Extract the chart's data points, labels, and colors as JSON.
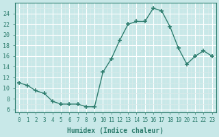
{
  "x": [
    0,
    1,
    2,
    3,
    4,
    5,
    6,
    7,
    8,
    9,
    10,
    11,
    12,
    13,
    14,
    15,
    16,
    17,
    18,
    19,
    20,
    21,
    22,
    23
  ],
  "y": [
    11,
    10.5,
    9.5,
    9,
    7.5,
    7,
    7,
    7,
    6.5,
    6.5,
    13,
    15.5,
    19,
    22,
    22.5,
    22.5,
    25,
    24.5,
    21.5,
    17.5,
    14.5,
    16,
    17,
    16
  ],
  "line_color": "#2e7d6e",
  "marker": "+",
  "bg_color": "#c8e8e8",
  "grid_color_major": "#ffffff",
  "grid_color_minor": "#daeaea",
  "xlabel": "Humidex (Indice chaleur)",
  "ylim": [
    5.5,
    26
  ],
  "xlim": [
    -0.5,
    23.5
  ],
  "yticks": [
    6,
    8,
    10,
    12,
    14,
    16,
    18,
    20,
    22,
    24
  ],
  "xticks": [
    0,
    1,
    2,
    3,
    4,
    5,
    6,
    7,
    8,
    9,
    10,
    11,
    12,
    13,
    14,
    15,
    16,
    17,
    18,
    19,
    20,
    21,
    22,
    23
  ]
}
